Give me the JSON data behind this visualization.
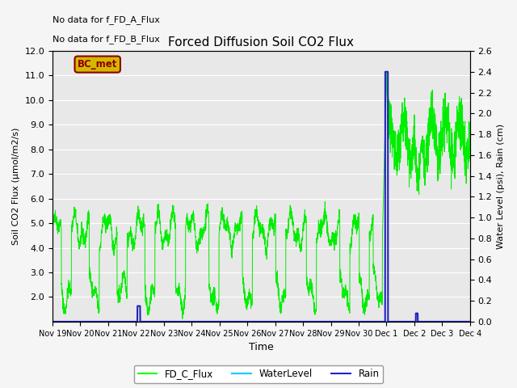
{
  "title": "Forced Diffusion Soil CO2 Flux",
  "xlabel": "Time",
  "ylabel_left": "Soil CO2 Flux (μmol/m2/s)",
  "ylabel_right": "Water Level (psi), Rain (cm)",
  "ylim_left": [
    1.0,
    12.0
  ],
  "ylim_right": [
    0.0,
    2.6
  ],
  "no_data_texts": [
    "No data for f_FD_A_Flux",
    "No data for f_FD_B_Flux"
  ],
  "bc_met_label": "BC_met",
  "bc_met_facecolor": "#d4b800",
  "bc_met_edgecolor": "#8b0000",
  "bc_met_text_color": "#8b0000",
  "legend_entries": [
    "FD_C_Flux",
    "WaterLevel",
    "Rain"
  ],
  "legend_colors": [
    "#00ff00",
    "#00ccff",
    "#2222cc"
  ],
  "fd_c_flux_color": "#00ee00",
  "water_level_color": "#00ccff",
  "rain_color": "#2222bb",
  "plot_bg_color": "#e8e8e8",
  "fig_bg_color": "#f5f5f5",
  "grid_color": "#ffffff",
  "yticks_left": [
    2.0,
    3.0,
    4.0,
    5.0,
    6.0,
    7.0,
    8.0,
    9.0,
    10.0,
    11.0,
    12.0
  ],
  "yticks_right": [
    0.0,
    0.2,
    0.4,
    0.6,
    0.8,
    1.0,
    1.2,
    1.4,
    1.6,
    1.8,
    2.0,
    2.2,
    2.4,
    2.6
  ],
  "xtick_labels": [
    "Nov 19",
    "Nov 20",
    "Nov 21",
    "Nov 22",
    "Nov 23",
    "Nov 24",
    "Nov 25",
    "Nov 26",
    "Nov 27",
    "Nov 28",
    "Nov 29",
    "Nov 30",
    "Dec 1",
    "Dec 2",
    "Dec 3",
    "Dec 4"
  ],
  "total_days": 15.0,
  "seed": 42,
  "n_points": 3000
}
